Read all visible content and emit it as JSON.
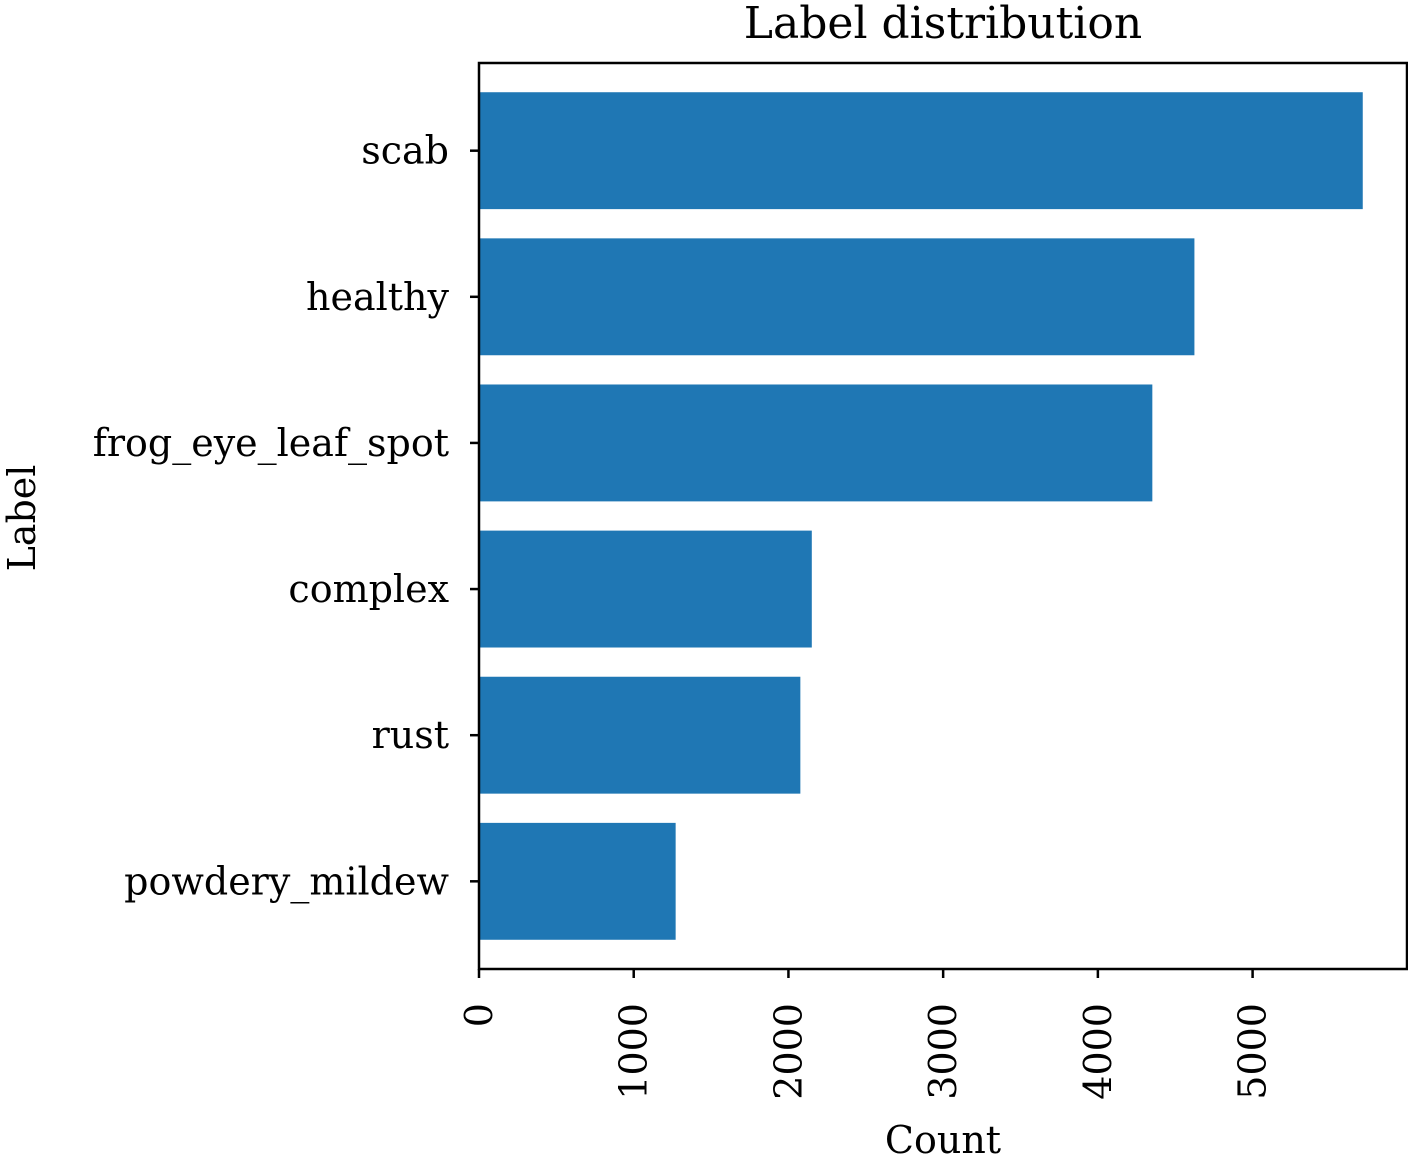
{
  "chart_data": {
    "type": "bar",
    "orientation": "horizontal",
    "title": "Label distribution",
    "xlabel": "Count",
    "ylabel": "Label",
    "categories": [
      "scab",
      "healthy",
      "frog_eye_leaf_spot",
      "complex",
      "rust",
      "powdery_mildew"
    ],
    "values": [
      5712,
      4624,
      4352,
      2151,
      2077,
      1271
    ],
    "xlim": [
      0,
      5998
    ],
    "xticks": [
      0,
      1000,
      2000,
      3000,
      4000,
      5000
    ],
    "bar_color": "#1f77b4",
    "grid": false,
    "legend": null
  }
}
